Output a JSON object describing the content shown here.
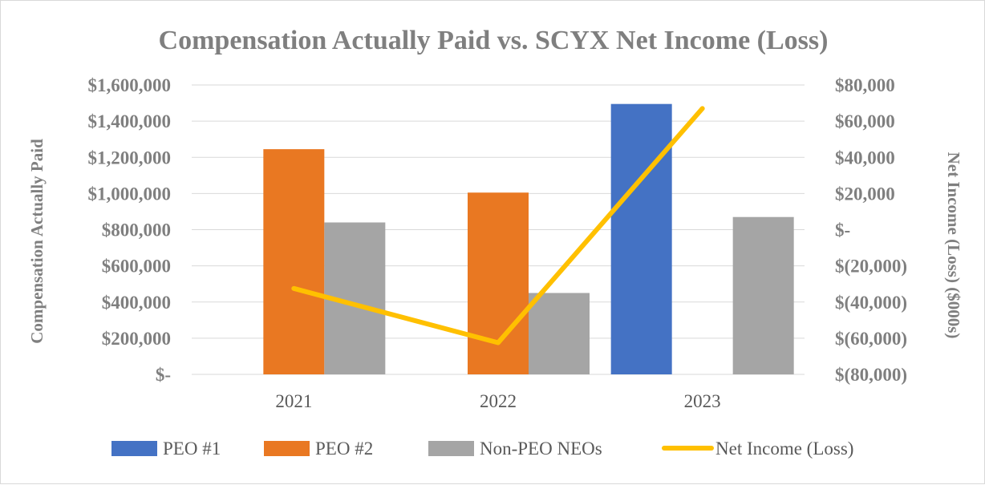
{
  "chart_data": {
    "type": "bar",
    "title": "Compensation Actually Paid vs. SCYX Net Income (Loss)",
    "categories": [
      "2021",
      "2022",
      "2023"
    ],
    "ylabel": "Compensation Actually Paid",
    "ylabel_right": "Net Income (Loss) ($000s)",
    "ylim": [
      0,
      1600000
    ],
    "ylim_right": [
      -80000,
      80000
    ],
    "yticks": [
      "$1,600,000",
      "$1,400,000",
      "$1,200,000",
      "$1,000,000",
      "$800,000",
      "$600,000",
      "$400,000",
      "$200,000",
      "$-"
    ],
    "yticks_right": [
      "$80,000",
      "$60,000",
      "$40,000",
      "$20,000",
      "$-",
      "$(20,000)",
      "$(40,000)",
      "$(60,000)",
      "$(80,000)"
    ],
    "grid": true,
    "legend_position": "bottom",
    "series": [
      {
        "name": "PEO #1",
        "type": "bar",
        "color": "#4472c4",
        "values": [
          null,
          null,
          1495000
        ]
      },
      {
        "name": "PEO #2",
        "type": "bar",
        "color": "#e97822",
        "values": [
          1245000,
          1005000,
          null
        ]
      },
      {
        "name": "Non-PEO NEOs",
        "type": "bar",
        "color": "#a5a5a5",
        "values": [
          840000,
          450000,
          870000
        ]
      },
      {
        "name": "Net Income (Loss)",
        "type": "line",
        "axis": "right",
        "color": "#ffc000",
        "values": [
          -32500,
          -62500,
          67000
        ]
      }
    ]
  }
}
